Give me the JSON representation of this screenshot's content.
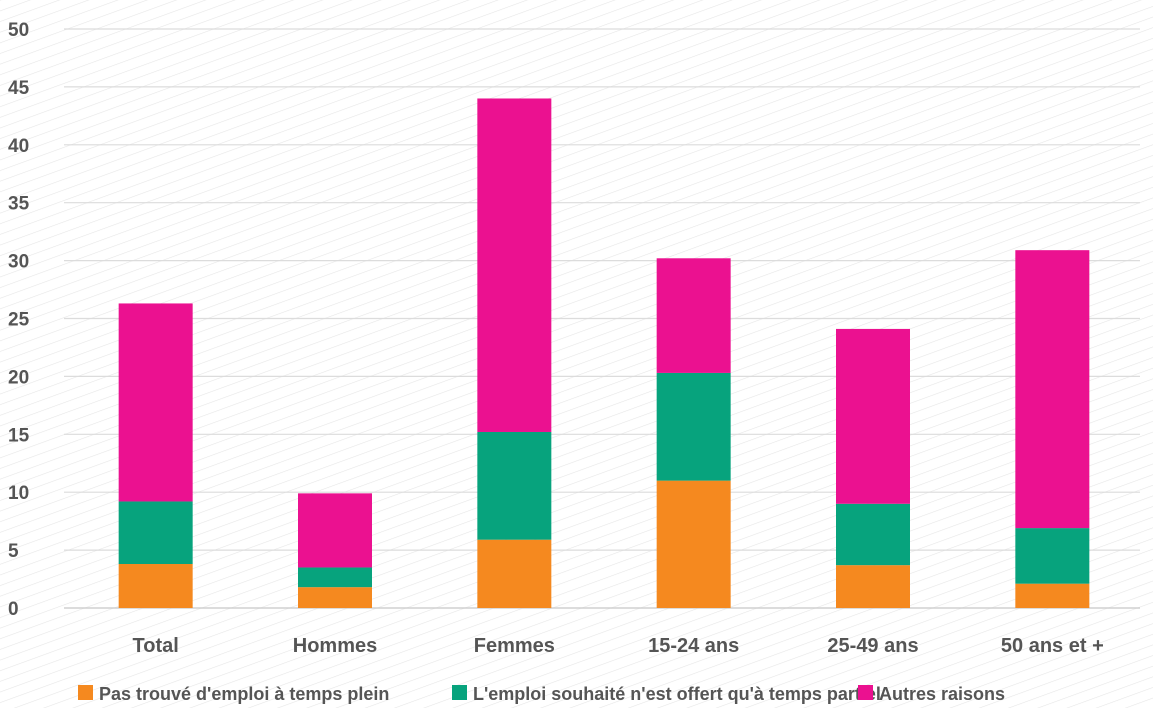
{
  "chart_data": {
    "type": "bar",
    "stacked": true,
    "categories": [
      "Total",
      "Hommes",
      "Femmes",
      "15-24 ans",
      "25-49 ans",
      "50 ans et +"
    ],
    "series": [
      {
        "name": "Pas trouvé d'emploi à temps plein",
        "color": "#f5891f",
        "values": [
          3.8,
          1.8,
          5.9,
          11.0,
          3.7,
          2.1
        ]
      },
      {
        "name": "L'emploi souhaité n'est offert qu'à temps partiel",
        "color": "#07a37d",
        "values": [
          5.4,
          1.7,
          9.3,
          9.3,
          5.3,
          4.8
        ]
      },
      {
        "name": "Autres raisons",
        "color": "#eb1190",
        "values": [
          17.1,
          6.4,
          28.8,
          9.9,
          15.1,
          24.0
        ]
      }
    ],
    "ylim": [
      0,
      50
    ],
    "yticks": [
      0,
      5,
      10,
      15,
      20,
      25,
      30,
      35,
      40,
      45,
      50
    ],
    "grid": true,
    "legend_position": "bottom"
  }
}
